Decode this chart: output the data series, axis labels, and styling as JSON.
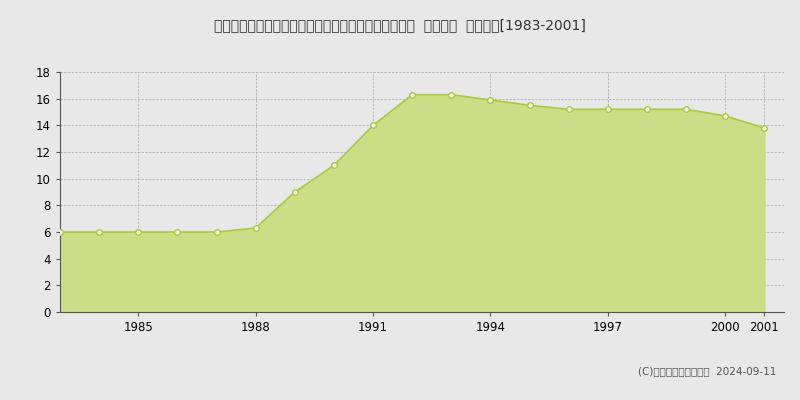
{
  "title": "埼玉県入間郡毛呂山町大字大谷木字石原ケ谷戸４番２  地価公示  地価推移[1983-2001]",
  "years": [
    1983,
    1984,
    1985,
    1986,
    1987,
    1988,
    1989,
    1990,
    1991,
    1992,
    1993,
    1994,
    1995,
    1996,
    1997,
    1998,
    1999,
    2000,
    2001
  ],
  "values": [
    6.0,
    6.0,
    6.0,
    6.0,
    6.0,
    6.3,
    9.0,
    11.0,
    14.0,
    16.3,
    16.3,
    15.9,
    15.5,
    15.2,
    15.2,
    15.2,
    15.2,
    14.7,
    13.8
  ],
  "line_color": "#aacc33",
  "fill_color": "#ccdd88",
  "marker_facecolor": "#ffffff",
  "marker_edgecolor": "#aacc33",
  "background_color": "#e8e8e8",
  "plot_bg_color": "#e8e8e8",
  "grid_color": "#999999",
  "ylim": [
    0,
    18
  ],
  "yticks": [
    0,
    2,
    4,
    6,
    8,
    10,
    12,
    14,
    16,
    18
  ],
  "xtick_years": [
    1985,
    1988,
    1991,
    1994,
    1997,
    2000,
    2001
  ],
  "copyright_text": "(C)土地価格ドットコム  2024-09-11",
  "title_fontsize": 10.0,
  "tick_fontsize": 8.5,
  "legend_fontsize": 8.5,
  "copyright_fontsize": 7.5
}
